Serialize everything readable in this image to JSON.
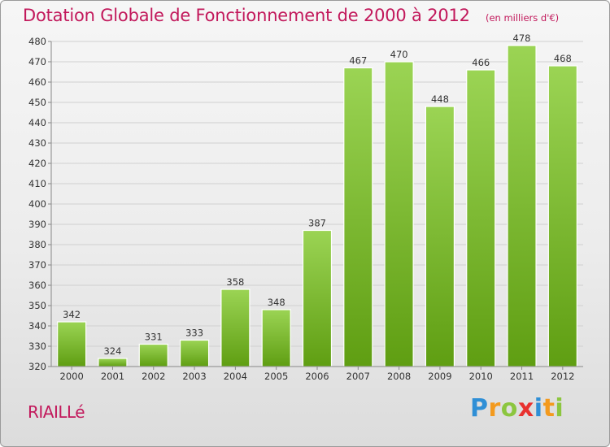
{
  "header": {
    "title": "Dotation Globale de Fonctionnement de 2000 à 2012",
    "subtitle": "(en milliers d'€)"
  },
  "footer": {
    "commune": "RIAILLé",
    "brand": "Proxiti",
    "brand_letters": [
      {
        "char": "P",
        "color": "#2f8fd6"
      },
      {
        "char": "r",
        "color": "#f39a1e"
      },
      {
        "char": "o",
        "color": "#8cc63f"
      },
      {
        "char": "x",
        "color": "#e8312f"
      },
      {
        "char": "i",
        "color": "#2f8fd6"
      },
      {
        "char": "t",
        "color": "#f39a1e"
      },
      {
        "char": "i",
        "color": "#8cc63f"
      }
    ]
  },
  "chart_data": {
    "type": "bar",
    "title": "Dotation Globale de Fonctionnement de 2000 à 2012",
    "subtitle": "(en milliers d'€)",
    "categories": [
      "2000",
      "2001",
      "2002",
      "2003",
      "2004",
      "2005",
      "2006",
      "2007",
      "2008",
      "2009",
      "2010",
      "2011",
      "2012"
    ],
    "values": [
      342,
      324,
      331,
      333,
      358,
      348,
      387,
      467,
      470,
      448,
      466,
      478,
      468
    ],
    "ylim": [
      320,
      480
    ],
    "yticks": [
      320,
      330,
      340,
      350,
      360,
      370,
      380,
      390,
      400,
      410,
      420,
      430,
      440,
      450,
      460,
      470,
      480
    ],
    "grid": true,
    "bar_color_top": "#9bd454",
    "bar_color_bottom": "#5f9e12",
    "xlabel": "",
    "ylabel": ""
  }
}
